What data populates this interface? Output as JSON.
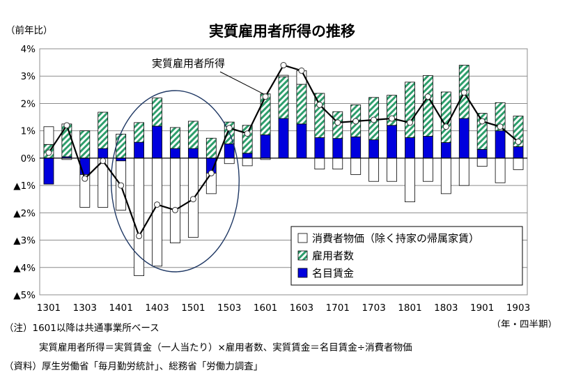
{
  "chart_data": {
    "type": "bar",
    "title": "実質雇用者所得の推移",
    "ylabel": "（前年比）",
    "xlabel": "（年・四半期）",
    "ylim": [
      -5,
      4
    ],
    "yticks": [
      4,
      3,
      2,
      1,
      0,
      -1,
      -2,
      -3,
      -4,
      -5
    ],
    "ytick_labels": [
      "4%",
      "3%",
      "2%",
      "1%",
      "0%",
      "▲1%",
      "▲2%",
      "▲3%",
      "▲4%",
      "▲5%"
    ],
    "grid": true,
    "legend_position": "bottom-right",
    "categories": [
      "1301",
      "1302",
      "1303",
      "1304",
      "1401",
      "1402",
      "1403",
      "1404",
      "1501",
      "1502",
      "1503",
      "1504",
      "1601",
      "1602",
      "1603",
      "1604",
      "1701",
      "1702",
      "1703",
      "1704",
      "1801",
      "1802",
      "1803",
      "1804",
      "1901",
      "1902",
      "1903"
    ],
    "xtick_labels": [
      "1301",
      "1303",
      "1401",
      "1403",
      "1501",
      "1503",
      "1601",
      "1603",
      "1701",
      "1703",
      "1801",
      "1803",
      "1901",
      "1903"
    ],
    "stacking": "positive and negative segments stack separately from 0",
    "series": [
      {
        "name": "名目賃金",
        "kind": "bar",
        "color": "#0000dd",
        "values": [
          -0.95,
          0.05,
          -0.6,
          0.35,
          -0.1,
          0.58,
          1.17,
          0.35,
          0.35,
          -0.55,
          0.52,
          0.18,
          0.85,
          1.45,
          1.25,
          0.75,
          0.72,
          0.78,
          0.67,
          1.2,
          0.75,
          0.8,
          0.57,
          1.45,
          0.32,
          1.0,
          0.42
        ]
      },
      {
        "name": "雇用者数",
        "kind": "bar",
        "color": "#2e9e6c",
        "values": [
          0.5,
          1.2,
          1.0,
          1.33,
          0.88,
          0.72,
          1.03,
          0.77,
          1.0,
          0.73,
          0.8,
          1.02,
          1.5,
          1.53,
          1.45,
          1.62,
          0.98,
          1.17,
          1.55,
          1.1,
          2.03,
          2.22,
          1.85,
          1.95,
          1.32,
          1.03,
          1.12
        ]
      },
      {
        "name": "消費者物価（除く持家の帰属家賃）",
        "kind": "bar",
        "color": "#ffffff",
        "values": [
          0.65,
          -0.05,
          -1.2,
          -1.8,
          -1.8,
          -4.3,
          -3.95,
          -3.1,
          -2.9,
          -0.75,
          -0.2,
          -0.28,
          -0.05,
          0.05,
          0.5,
          -0.4,
          -0.4,
          -0.6,
          -0.85,
          -0.85,
          -1.6,
          -0.85,
          -1.3,
          -1.0,
          -0.3,
          -0.9,
          -0.42
        ]
      },
      {
        "name": "実質雇用者所得",
        "kind": "line",
        "color": "#000000",
        "values": [
          0.2,
          1.2,
          -0.75,
          -0.1,
          -1.0,
          -2.85,
          -1.7,
          -1.9,
          -1.5,
          -0.55,
          1.1,
          0.9,
          2.25,
          3.4,
          3.2,
          1.95,
          1.3,
          1.35,
          1.4,
          1.45,
          1.3,
          2.25,
          1.15,
          2.4,
          1.35,
          1.15,
          0.6
        ]
      }
    ],
    "annotation": "実質雇用者所得"
  },
  "notes": {
    "line1": "（注）1601以降は共通事業所ベース",
    "line2": "実質雇用者所得＝実質賃金（一人当たり）×雇用者数、実質賃金＝名目賃金÷消費者物価",
    "line3": "（資料）厚生労働省「毎月勤労統計」、総務省「労働力調査」"
  }
}
